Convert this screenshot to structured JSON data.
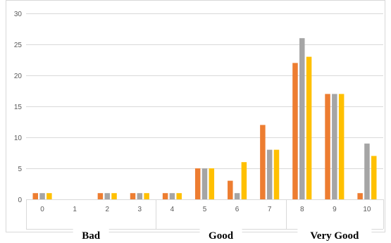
{
  "chart_data": {
    "type": "bar",
    "categories": [
      "0",
      "1",
      "2",
      "3",
      "4",
      "5",
      "6",
      "7",
      "8",
      "9",
      "10"
    ],
    "series": [
      {
        "values": [
          1,
          0,
          1,
          1,
          1,
          5,
          3,
          12,
          22,
          17,
          1
        ],
        "color": "#ED7D31"
      },
      {
        "values": [
          1,
          0,
          1,
          1,
          1,
          5,
          1,
          8,
          26,
          17,
          9
        ],
        "color": "#A5A5A5"
      },
      {
        "values": [
          1,
          0,
          1,
          1,
          1,
          5,
          6,
          8,
          23,
          17,
          7
        ],
        "color": "#FFC000"
      }
    ],
    "y_ticks": [
      "0",
      "5",
      "10",
      "15",
      "20",
      "25",
      "30"
    ],
    "ylim": [
      0,
      30
    ],
    "grid": true,
    "groups": [
      {
        "label": "Bad",
        "from": "0",
        "to": "3"
      },
      {
        "label": "Good",
        "from": "4",
        "to": "7"
      },
      {
        "label": "Very Good",
        "from": "8",
        "to": "10"
      }
    ],
    "colors": {
      "grid": "#D9D9D9",
      "axis": "#D9D9D9",
      "text": "#595959"
    }
  }
}
